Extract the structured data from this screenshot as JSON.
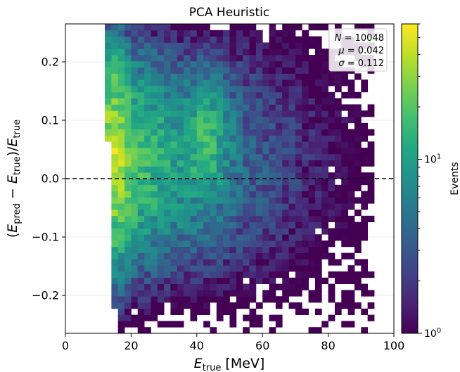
{
  "chart_data": {
    "type": "heatmap",
    "title": "PCA Heuristic",
    "xlabel": "E_true [MeV]",
    "ylabel": "(E_pred − E_true)/E_true",
    "xlim": [
      0,
      100
    ],
    "ylim": [
      -0.265,
      0.265
    ],
    "x_ticks": [
      0,
      20,
      40,
      60,
      80,
      100
    ],
    "y_ticks": [
      -0.2,
      -0.1,
      0.0,
      0.1,
      0.2
    ],
    "x_tick_labels": [
      "0",
      "20",
      "40",
      "60",
      "80",
      "100"
    ],
    "y_tick_labels": [
      "−0.2",
      "−0.1",
      "0.0",
      "0.1",
      "0.2"
    ],
    "reference_line": {
      "y": 0.0,
      "style": "dashed",
      "color": "#000000"
    },
    "grid": true,
    "colormap": "viridis",
    "color_scale": "log",
    "color_range": [
      1,
      60
    ],
    "colorbar": {
      "label": "Events",
      "ticks": [
        {
          "value": 1,
          "label": "10^0"
        },
        {
          "value": 10,
          "label": "10^1"
        }
      ]
    },
    "stats": [
      {
        "symbol": "N",
        "value": "10048"
      },
      {
        "symbol": "μ",
        "value": "0.042"
      },
      {
        "symbol": "σ",
        "value": "0.112"
      }
    ],
    "density_model": {
      "description": "2D histogram of relative energy residual vs true energy",
      "x_bin_width": 2,
      "y_bin_width": 0.0106,
      "onset_x_band": [
        13,
        15
      ],
      "bright_ridge_x": 15,
      "secondary_ridge_x": 43,
      "max_x_extent": 94
    }
  }
}
